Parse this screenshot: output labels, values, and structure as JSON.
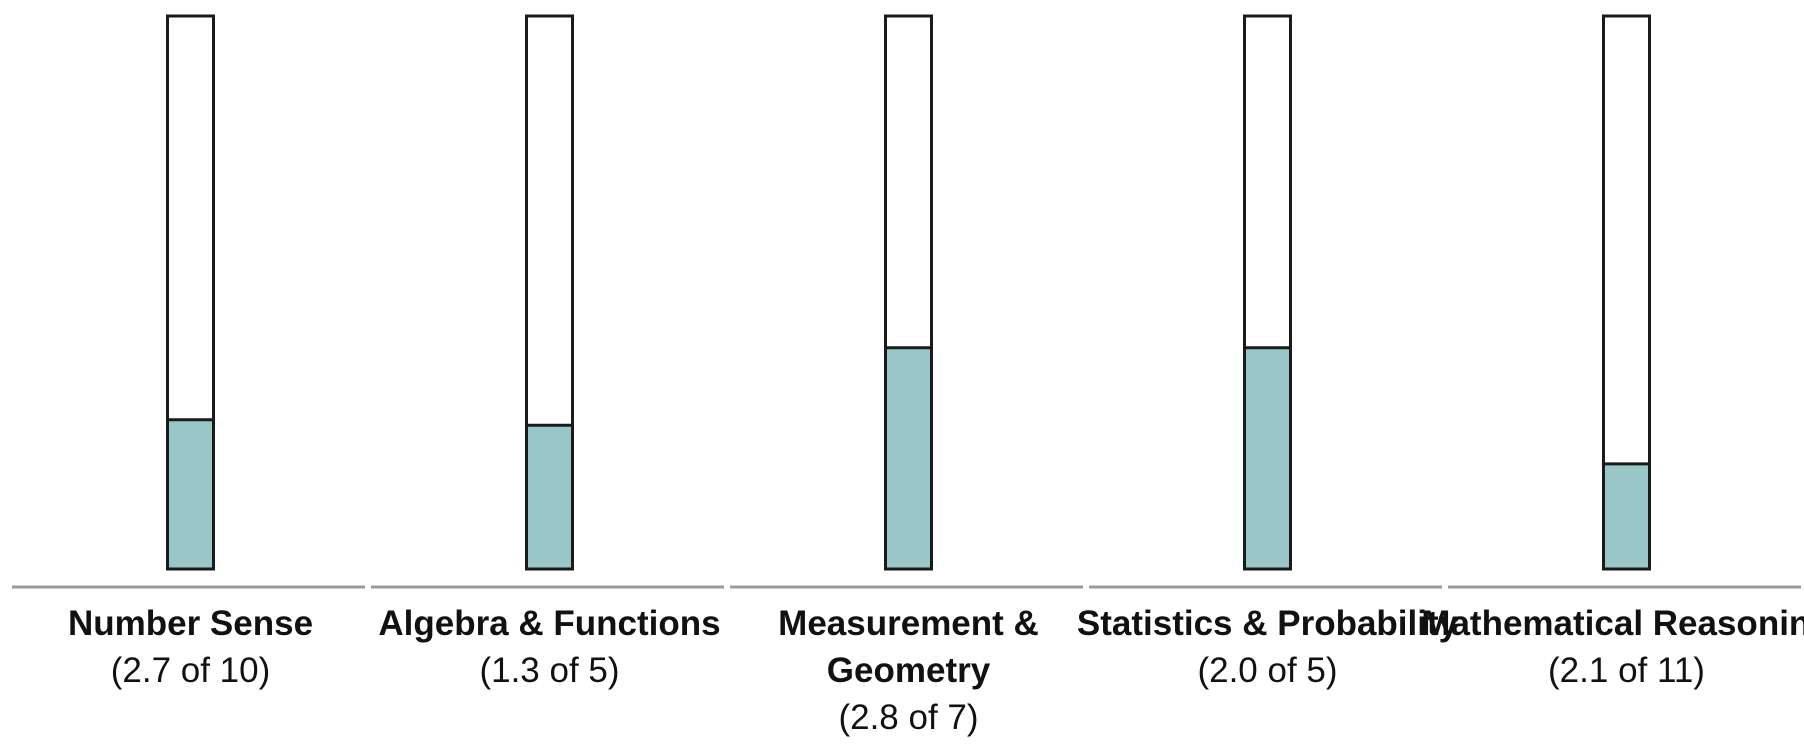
{
  "chart_data": {
    "type": "bar",
    "bar_style": "thermometer",
    "categories": [
      {
        "name": "Number Sense",
        "name_lines": [
          "Number Sense"
        ],
        "score_text": "(2.7 of 10)",
        "value": 2.7,
        "max": 10
      },
      {
        "name": "Algebra & Functions",
        "name_lines": [
          "Algebra & Functions"
        ],
        "score_text": "(1.3 of 5)",
        "value": 1.3,
        "max": 5
      },
      {
        "name": "Measurement & Geometry",
        "name_lines": [
          "Measurement &",
          "Geometry"
        ],
        "score_text": "(2.8 of 7)",
        "value": 2.8,
        "max": 7
      },
      {
        "name": "Statistics & Probability",
        "name_lines": [
          "Statistics & Probability"
        ],
        "score_text": "(2.0 of 5)",
        "value": 2.0,
        "max": 5
      },
      {
        "name": "Mathematical Reasoning",
        "name_lines": [
          "Mathematical Reasoning"
        ],
        "score_text": "(2.1 of 11)",
        "value": 2.1,
        "max": 11
      }
    ],
    "fill_fractions": [
      0.27,
      0.26,
      0.4,
      0.4,
      0.19
    ],
    "ylim": [
      0,
      1
    ],
    "grid": false,
    "legend": "none",
    "fill_color": "#99c7c7",
    "empty_color": "#ffffff",
    "outline_color": "#1a1a1a",
    "baseline_color": "#9a9a9a"
  }
}
